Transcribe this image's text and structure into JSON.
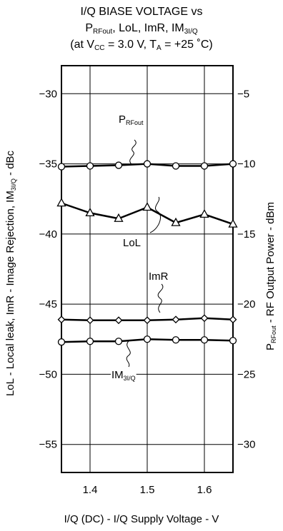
{
  "chart_data": {
    "type": "line",
    "title_lines": [
      [
        {
          "t": "I/Q BIASE VOLTAGE vs"
        }
      ],
      [
        {
          "t": "P"
        },
        {
          "t": "RFout",
          "sub": true
        },
        {
          "t": ", LoL, ImR, IM"
        },
        {
          "t": "3I/Q",
          "sub": true
        }
      ],
      [
        {
          "t": "(at V"
        },
        {
          "t": "CC",
          "sub": true
        },
        {
          "t": " = 3.0 V, T"
        },
        {
          "t": "A",
          "sub": true
        },
        {
          "t": " = +25 ˚C)"
        }
      ]
    ],
    "xlabel": "I/Q (DC) - I/Q Supply Voltage - V",
    "ylabel_left": [
      {
        "t": "LoL - Local leak, ImR - Image Rejection, IM"
      },
      {
        "t": "3I/Q",
        "sub": true
      },
      {
        "t": " - dBc"
      }
    ],
    "ylabel_right": [
      {
        "t": "P"
      },
      {
        "t": "RFout",
        "sub": true
      },
      {
        "t": " - RF Output Power - dBm"
      }
    ],
    "xlim": [
      1.35,
      1.65
    ],
    "ylim_left": [
      -57,
      -28
    ],
    "ylim_right": [
      -32,
      -3
    ],
    "x_ticks": [
      1.4,
      1.5,
      1.6
    ],
    "x_tick_labels": [
      "1.4",
      "1.5",
      "1.6"
    ],
    "y_left_ticks": [
      -30,
      -35,
      -40,
      -45,
      -50,
      -55
    ],
    "y_left_tick_labels": [
      "−30",
      "−35",
      "−40",
      "−45",
      "−50",
      "−55"
    ],
    "y_right_ticks": [
      -5,
      -10,
      -15,
      -20,
      -25,
      -30
    ],
    "y_right_tick_labels": [
      "−5",
      "−10",
      "−15",
      "−20",
      "−25",
      "−30"
    ],
    "grid": true,
    "x": [
      1.35,
      1.4,
      1.45,
      1.5,
      1.55,
      1.6,
      1.65
    ],
    "series": [
      {
        "name": "PRFout",
        "axis": "right",
        "marker": "circle",
        "values": [
          -10.2,
          -10.15,
          -10.1,
          -10.0,
          -10.15,
          -10.15,
          -10.0
        ]
      },
      {
        "name": "LoL",
        "axis": "left",
        "marker": "triangle",
        "values": [
          -37.8,
          -38.5,
          -38.9,
          -38.1,
          -39.2,
          -38.6,
          -39.3
        ]
      },
      {
        "name": "ImR",
        "axis": "left",
        "marker": "diamond",
        "values": [
          -46.1,
          -46.15,
          -46.15,
          -46.15,
          -46.1,
          -46.0,
          -46.1
        ]
      },
      {
        "name": "IM3I/Q",
        "axis": "left",
        "marker": "circle",
        "values": [
          -47.7,
          -47.65,
          -47.65,
          -47.5,
          -47.55,
          -47.55,
          -47.6
        ]
      }
    ],
    "annotations": [
      {
        "series": "PRFout",
        "label": [
          {
            "t": "P"
          },
          {
            "t": "RFout",
            "sub": true
          }
        ]
      },
      {
        "series": "LoL",
        "label": [
          {
            "t": "LoL"
          }
        ]
      },
      {
        "series": "ImR",
        "label": [
          {
            "t": "ImR"
          }
        ]
      },
      {
        "series": "IM3I/Q",
        "label": [
          {
            "t": "IM"
          },
          {
            "t": "3I/Q",
            "sub": true
          }
        ]
      }
    ]
  }
}
